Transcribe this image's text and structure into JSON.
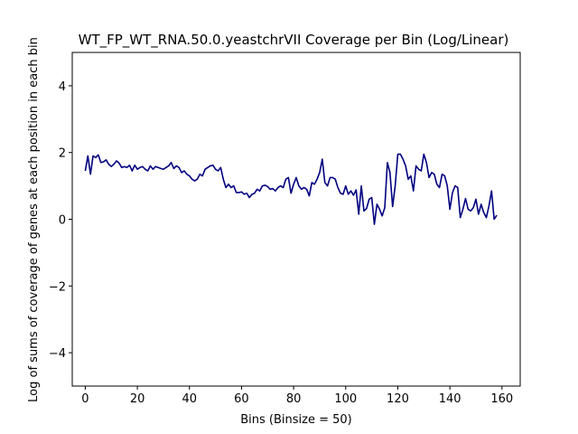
{
  "chart_data": {
    "type": "line",
    "title": "WT_FP_WT_RNA.50.0.yeastchrVII Coverage per Bin (Log/Linear)",
    "xlabel": "Bins (Binsize = 50)",
    "ylabel": "Log of sums of coverage of genes at each position in each bin",
    "xlim": [
      -5,
      167
    ],
    "ylim": [
      -5,
      5
    ],
    "xticks": [
      0,
      20,
      40,
      60,
      80,
      100,
      120,
      140,
      160
    ],
    "yticks": [
      -4,
      -2,
      0,
      2,
      4
    ],
    "ytick_labels": [
      "−4",
      "−2",
      "0",
      "2",
      "4"
    ],
    "line_color": "#000080",
    "series": [
      {
        "name": "coverage",
        "values": [
          1.45,
          1.9,
          1.35,
          1.9,
          1.85,
          1.93,
          1.7,
          1.72,
          1.78,
          1.65,
          1.58,
          1.65,
          1.75,
          1.68,
          1.55,
          1.58,
          1.55,
          1.62,
          1.45,
          1.62,
          1.5,
          1.55,
          1.58,
          1.5,
          1.45,
          1.6,
          1.5,
          1.58,
          1.55,
          1.52,
          1.5,
          1.55,
          1.6,
          1.7,
          1.52,
          1.6,
          1.55,
          1.4,
          1.45,
          1.35,
          1.3,
          1.2,
          1.15,
          1.2,
          1.35,
          1.3,
          1.5,
          1.55,
          1.6,
          1.62,
          1.5,
          1.45,
          1.55,
          1.2,
          0.95,
          1.05,
          0.95,
          1.0,
          0.8,
          0.8,
          0.82,
          0.75,
          0.78,
          0.65,
          0.75,
          0.78,
          0.9,
          0.85,
          1.0,
          1.02,
          0.98,
          0.9,
          0.92,
          0.85,
          0.95,
          1.0,
          0.95,
          1.2,
          1.25,
          0.78,
          1.05,
          1.25,
          1.0,
          0.9,
          0.95,
          0.9,
          0.7,
          1.1,
          1.05,
          1.2,
          1.4,
          1.8,
          1.1,
          1.0,
          1.25,
          1.25,
          1.2,
          0.95,
          0.78,
          0.75,
          1.0,
          0.75,
          0.85,
          0.72,
          0.88,
          0.15,
          1.0,
          0.25,
          0.32,
          0.6,
          0.65,
          -0.15,
          0.45,
          0.3,
          0.1,
          0.35,
          1.7,
          1.4,
          0.38,
          1.0,
          1.95,
          1.95,
          1.8,
          1.6,
          1.2,
          1.3,
          0.85,
          1.6,
          1.5,
          1.45,
          1.95,
          1.7,
          1.25,
          1.4,
          1.35,
          1.05,
          0.95,
          1.35,
          1.3,
          1.0,
          0.3,
          0.8,
          1.0,
          0.95,
          0.05,
          0.3,
          0.62,
          0.3,
          0.25,
          0.35,
          0.6,
          0.15,
          0.45,
          0.2,
          0.05,
          0.4,
          0.85,
          0.0,
          0.12
        ]
      }
    ]
  }
}
